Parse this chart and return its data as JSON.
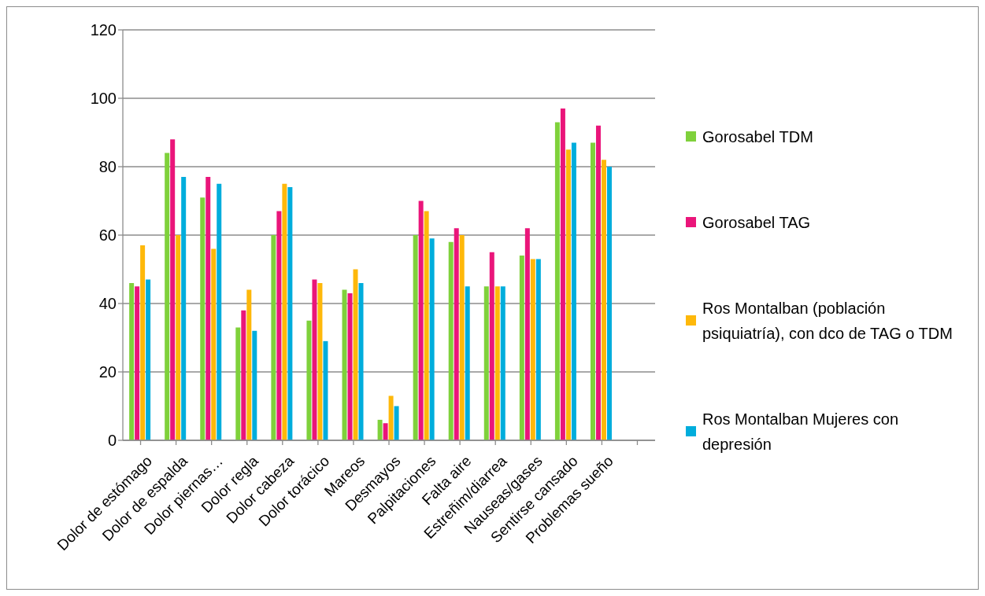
{
  "chart_data": {
    "type": "bar",
    "categories": [
      "Dolor de estómago",
      "Dolor de espalda",
      "Dolor piernas…",
      "Dolor regla",
      "Dolor cabeza",
      "Dolor torácico",
      "Mareos",
      "Desmayos",
      "Palpitaciones",
      "Falta aire",
      "Estreñim/diarrea",
      "Nauseas/gases",
      "Sentirse cansado",
      "Problemas sueño",
      null
    ],
    "series": [
      {
        "name": "Gorosabel TDM",
        "color": "#7fd13b",
        "values": [
          46,
          84,
          71,
          33,
          60,
          35,
          44,
          6,
          60,
          58,
          45,
          54,
          93,
          87,
          null
        ]
      },
      {
        "name": "Gorosabel TAG",
        "color": "#ea157a",
        "values": [
          45,
          88,
          77,
          38,
          67,
          47,
          43,
          5,
          70,
          62,
          55,
          62,
          97,
          92,
          null
        ]
      },
      {
        "name": "Ros Montalban (población psiquiatría), con dco de TAG o TDM",
        "color": "#feb80a",
        "values": [
          57,
          60,
          56,
          44,
          75,
          46,
          50,
          13,
          67,
          60,
          45,
          53,
          85,
          82,
          null
        ]
      },
      {
        "name": "Ros Montalban Mujeres con depresión",
        "color": "#00addc",
        "values": [
          47,
          77,
          75,
          32,
          74,
          29,
          46,
          10,
          59,
          45,
          45,
          53,
          87,
          80,
          null
        ]
      }
    ],
    "ylim": [
      0,
      120
    ],
    "yticks": [
      0,
      20,
      40,
      60,
      80,
      100,
      120
    ],
    "grid": "y",
    "legend": "right"
  }
}
